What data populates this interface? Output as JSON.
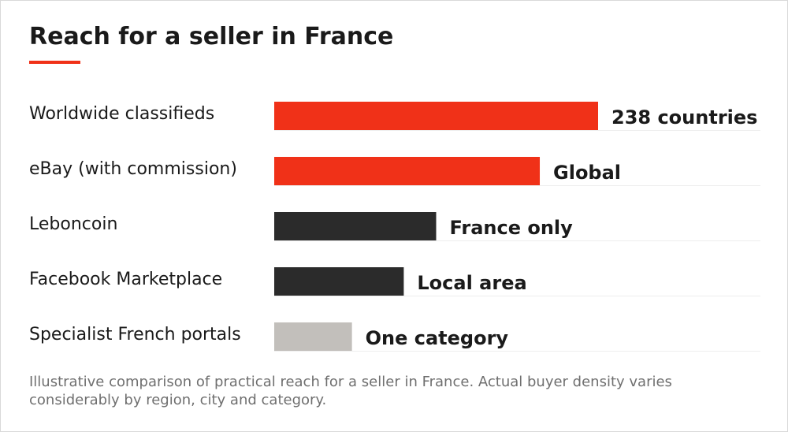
{
  "title": "Reach for a seller in France",
  "footnote": "Illustrative comparison of practical reach for a seller in France. Actual buyer density varies considerably by region, city and category.",
  "colors": {
    "accent": "#f03118",
    "dark": "#2b2b2b",
    "light": "#c2bfbb"
  },
  "chart_data": {
    "type": "bar",
    "orientation": "horizontal",
    "categories": [
      "Worldwide classifieds",
      "eBay (with commission)",
      "Leboncoin",
      "Facebook Marketplace",
      "Specialist French portals"
    ],
    "values": [
      100,
      82,
      50,
      40,
      24
    ],
    "value_scale": "relative reach (no axis printed)",
    "data_labels": [
      "238 countries",
      "Global",
      "France only",
      "Local area",
      "One category"
    ],
    "bar_colors": [
      "#f03118",
      "#f03118",
      "#2b2b2b",
      "#2b2b2b",
      "#c2bfbb"
    ],
    "xlim": [
      0,
      100
    ],
    "title": "Reach for a seller in France",
    "xlabel": "",
    "ylabel": "",
    "grid": false,
    "legend": "none"
  }
}
